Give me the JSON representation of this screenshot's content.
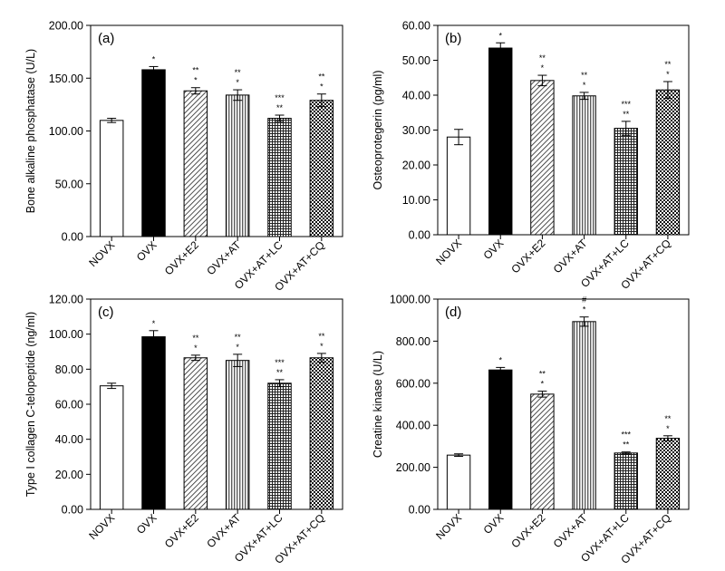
{
  "chart_data": [
    {
      "type": "bar",
      "panel_label": "(a)",
      "ylabel": "Bone alkaline phosphatase (U/L)",
      "categories": [
        "NOVX",
        "OVX",
        "OVX+E2",
        "OVX+AT",
        "OVX+AT+LC",
        "OVX+AT+CQ"
      ],
      "values": [
        110,
        158,
        138,
        134,
        112,
        129
      ],
      "errors": [
        2,
        3,
        3,
        5,
        3,
        6
      ],
      "annotations": [
        [],
        [
          "*"
        ],
        [
          "*",
          "**"
        ],
        [
          "*",
          "**"
        ],
        [
          "**",
          "***"
        ],
        [
          "*",
          "**"
        ]
      ],
      "ylim": [
        0,
        200
      ],
      "yticks": [
        0,
        50,
        100,
        150,
        200
      ],
      "yticklabels": [
        "0.00",
        "50.00",
        "100.00",
        "150.00",
        "200.00"
      ],
      "patterns": [
        "white",
        "black",
        "diag",
        "vert",
        "grid",
        "check"
      ]
    },
    {
      "type": "bar",
      "panel_label": "(b)",
      "ylabel": "Osteoprotegerin (pg/ml)",
      "categories": [
        "NOVX",
        "OVX",
        "OVX+E2",
        "OVX+AT",
        "OVX+AT+LC",
        "OVX+AT+CQ"
      ],
      "values": [
        28,
        53.5,
        44.2,
        39.8,
        30.5,
        41.5
      ],
      "errors": [
        2.2,
        1.5,
        1.5,
        1.0,
        2.0,
        2.4
      ],
      "annotations": [
        [],
        [
          "*"
        ],
        [
          "*",
          "**"
        ],
        [
          "*",
          "**"
        ],
        [
          "**",
          "***"
        ],
        [
          "*",
          "**"
        ]
      ],
      "ylim": [
        0,
        60
      ],
      "yticks": [
        0,
        10,
        20,
        30,
        40,
        50,
        60
      ],
      "yticklabels": [
        "0.00",
        "10.00",
        "20.00",
        "30.00",
        "40.00",
        "50.00",
        "60.00"
      ],
      "patterns": [
        "white",
        "black",
        "diag",
        "vert",
        "grid",
        "check"
      ]
    },
    {
      "type": "bar",
      "panel_label": "(c)",
      "ylabel": "Type I collagen C-telopeptide (ng/ml)",
      "categories": [
        "NOVX",
        "OVX",
        "OVX+E2",
        "OVX+AT",
        "OVX+AT+LC",
        "OVX+AT+CQ"
      ],
      "values": [
        70.5,
        98.5,
        86.5,
        85,
        72,
        86.5
      ],
      "errors": [
        1.5,
        3.5,
        1.5,
        3.5,
        2,
        2.5
      ],
      "annotations": [
        [],
        [
          "*"
        ],
        [
          "*",
          "**"
        ],
        [
          "*",
          "**"
        ],
        [
          "**",
          "***"
        ],
        [
          "*",
          "**"
        ]
      ],
      "ylim": [
        0,
        120
      ],
      "yticks": [
        0,
        20,
        40,
        60,
        80,
        100,
        120
      ],
      "yticklabels": [
        "0.00",
        "20.00",
        "40.00",
        "60.00",
        "80.00",
        "100.00",
        "120.00"
      ],
      "patterns": [
        "white",
        "black",
        "diag",
        "vert",
        "grid",
        "check"
      ]
    },
    {
      "type": "bar",
      "panel_label": "(d)",
      "ylabel": "Creatine kinase (U/L)",
      "categories": [
        "NOVX",
        "OVX",
        "OVX+E2",
        "OVX+AT",
        "OVX+AT+LC",
        "OVX+AT+CQ"
      ],
      "values": [
        258,
        663,
        548,
        893,
        268,
        338
      ],
      "errors": [
        6,
        12,
        14,
        22,
        5,
        12
      ],
      "annotations": [
        [],
        [
          "*"
        ],
        [
          "*",
          "**"
        ],
        [
          "*",
          "#"
        ],
        [
          "**",
          "***"
        ],
        [
          "*",
          "**"
        ]
      ],
      "ylim": [
        0,
        1000
      ],
      "yticks": [
        0,
        200,
        400,
        600,
        800,
        1000
      ],
      "yticklabels": [
        "0.00",
        "200.00",
        "400.00",
        "600.00",
        "800.00",
        "1000.00"
      ],
      "patterns": [
        "white",
        "black",
        "diag",
        "vert",
        "grid",
        "check"
      ]
    }
  ]
}
